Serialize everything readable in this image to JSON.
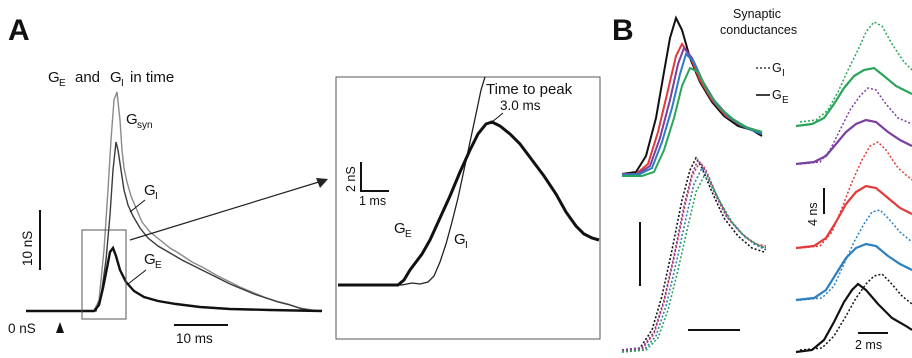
{
  "figure": {
    "panel_a": {
      "letter": "A",
      "title_parts": [
        "G",
        "E",
        "and",
        "G",
        "I",
        "in time"
      ],
      "g_syn": [
        "G",
        "syn"
      ],
      "g_i": [
        "G",
        "I"
      ],
      "g_e": [
        "G",
        "E"
      ],
      "scale_10ns": "10 nS",
      "zero_ns": "0 nS",
      "scale_10ms": "10 ms",
      "inset": {
        "time_to_peak": "Time to peak",
        "peak_value": "3.0 ms",
        "scale_2ns": "2 nS",
        "scale_1ms": "1 ms",
        "g_e": [
          "G",
          "E"
        ],
        "g_i": [
          "G",
          "I"
        ]
      }
    },
    "panel_b": {
      "letter": "B",
      "title_line1": "Synaptic",
      "title_line2": "conductances",
      "legend_gi": [
        "G",
        "I"
      ],
      "legend_ge": [
        "G",
        "E"
      ],
      "scale_4ns": "4 ns",
      "scale_2ms": "2 ms"
    },
    "colors": {
      "black": "#111111",
      "gray": "#8a8a8a",
      "green": "#2aa55a",
      "purple": "#7b3fa0",
      "red": "#e03a3a",
      "blue": "#2a7fc1"
    }
  }
}
